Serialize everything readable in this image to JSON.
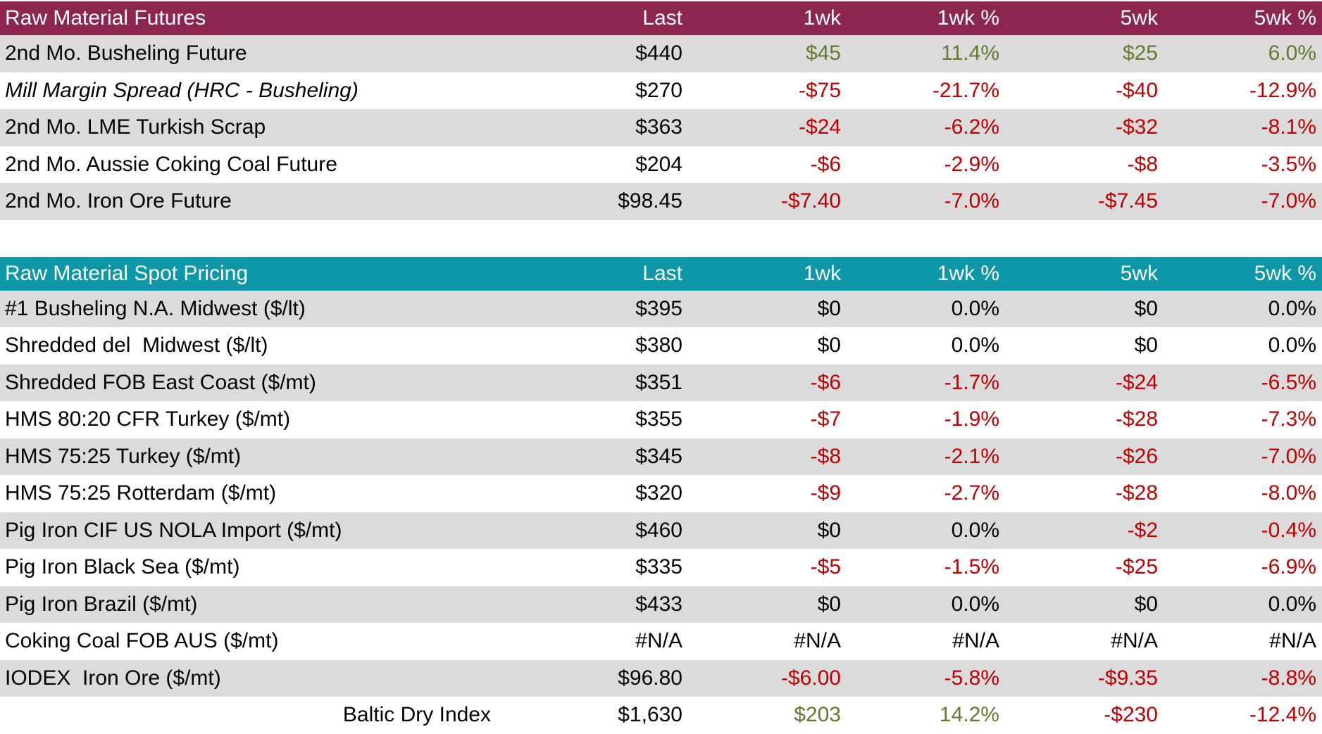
{
  "colors": {
    "futures_header_bg": "#8C2651",
    "spot_header_bg": "#0E97A9",
    "row_stripe": "#DBDBDB",
    "positive_text": "#65792F",
    "negative_text": "#C00000",
    "neutral_text": "#000000",
    "header_text": "#FFFFFF"
  },
  "columns": [
    "Last",
    "1wk",
    "1wk %",
    "5wk",
    "5wk %"
  ],
  "tables": [
    {
      "title": "Raw Material Futures",
      "header_bg": "#8C2651",
      "rows": [
        {
          "label": "2nd Mo. Busheling Future",
          "label_style": "",
          "cells": [
            "$440",
            "$45",
            "11.4%",
            "$25",
            "6.0%"
          ],
          "colors": [
            "k",
            "g",
            "g",
            "g",
            "g"
          ]
        },
        {
          "label": "Mill Margin Spread (HRC - Busheling)",
          "label_style": "italic-indent",
          "cells": [
            "$270",
            "-$75",
            "-21.7%",
            "-$40",
            "-12.9%"
          ],
          "colors": [
            "k",
            "r",
            "r",
            "r",
            "r"
          ]
        },
        {
          "label": "2nd Mo. LME Turkish Scrap",
          "label_style": "",
          "cells": [
            "$363",
            "-$24",
            "-6.2%",
            "-$32",
            "-8.1%"
          ],
          "colors": [
            "k",
            "r",
            "r",
            "r",
            "r"
          ]
        },
        {
          "label": "2nd Mo. Aussie Coking Coal Future",
          "label_style": "",
          "cells": [
            "$204",
            "-$6",
            "-2.9%",
            "-$8",
            "-3.5%"
          ],
          "colors": [
            "k",
            "r",
            "r",
            "r",
            "r"
          ]
        },
        {
          "label": "2nd Mo. Iron Ore Future",
          "label_style": "",
          "cells": [
            "$98.45",
            "-$7.40",
            "-7.0%",
            "-$7.45",
            "-7.0%"
          ],
          "colors": [
            "k",
            "r",
            "r",
            "r",
            "r"
          ]
        }
      ]
    },
    {
      "title": "Raw Material Spot Pricing",
      "header_bg": "#0E97A9",
      "rows": [
        {
          "label": "#1 Busheling N.A. Midwest ($/lt)",
          "label_style": "",
          "cells": [
            "$395",
            "$0",
            "0.0%",
            "$0",
            "0.0%"
          ],
          "colors": [
            "k",
            "k",
            "k",
            "k",
            "k"
          ]
        },
        {
          "label": "Shredded del  Midwest ($/lt)",
          "label_style": "",
          "cells": [
            "$380",
            "$0",
            "0.0%",
            "$0",
            "0.0%"
          ],
          "colors": [
            "k",
            "k",
            "k",
            "k",
            "k"
          ]
        },
        {
          "label": "Shredded FOB East Coast ($/mt)",
          "label_style": "",
          "cells": [
            "$351",
            "-$6",
            "-1.7%",
            "-$24",
            "-6.5%"
          ],
          "colors": [
            "k",
            "r",
            "r",
            "r",
            "r"
          ]
        },
        {
          "label": "HMS 80:20 CFR Turkey ($/mt)",
          "label_style": "",
          "cells": [
            "$355",
            "-$7",
            "-1.9%",
            "-$28",
            "-7.3%"
          ],
          "colors": [
            "k",
            "r",
            "r",
            "r",
            "r"
          ]
        },
        {
          "label": "HMS 75:25 Turkey ($/mt)",
          "label_style": "",
          "cells": [
            "$345",
            "-$8",
            "-2.1%",
            "-$26",
            "-7.0%"
          ],
          "colors": [
            "k",
            "r",
            "r",
            "r",
            "r"
          ]
        },
        {
          "label": "HMS 75:25 Rotterdam ($/mt)",
          "label_style": "",
          "cells": [
            "$320",
            "-$9",
            "-2.7%",
            "-$28",
            "-8.0%"
          ],
          "colors": [
            "k",
            "r",
            "r",
            "r",
            "r"
          ]
        },
        {
          "label": "Pig Iron CIF US NOLA Import ($/mt)",
          "label_style": "",
          "cells": [
            "$460",
            "$0",
            "0.0%",
            "-$2",
            "-0.4%"
          ],
          "colors": [
            "k",
            "k",
            "k",
            "r",
            "r"
          ]
        },
        {
          "label": "Pig Iron Black Sea ($/mt)",
          "label_style": "",
          "cells": [
            "$335",
            "-$5",
            "-1.5%",
            "-$25",
            "-6.9%"
          ],
          "colors": [
            "k",
            "r",
            "r",
            "r",
            "r"
          ]
        },
        {
          "label": "Pig Iron Brazil ($/mt)",
          "label_style": "",
          "cells": [
            "$433",
            "$0",
            "0.0%",
            "$0",
            "0.0%"
          ],
          "colors": [
            "k",
            "k",
            "k",
            "k",
            "k"
          ]
        },
        {
          "label": "Coking Coal FOB AUS ($/mt)",
          "label_style": "",
          "cells": [
            "#N/A",
            "#N/A",
            "#N/A",
            "#N/A",
            "#N/A"
          ],
          "colors": [
            "k",
            "k",
            "k",
            "k",
            "k"
          ]
        },
        {
          "label": "IODEX  Iron Ore ($/mt)",
          "label_style": "",
          "cells": [
            "$96.80",
            "-$6.00",
            "-5.8%",
            "-$9.35",
            "-8.8%"
          ],
          "colors": [
            "k",
            "r",
            "r",
            "r",
            "r"
          ]
        },
        {
          "label": "Baltic Dry Index",
          "label_style": "right-indent",
          "cells": [
            "$1,630",
            "$203",
            "14.2%",
            "-$230",
            "-12.4%"
          ],
          "colors": [
            "k",
            "g",
            "g",
            "r",
            "r"
          ]
        }
      ]
    }
  ]
}
